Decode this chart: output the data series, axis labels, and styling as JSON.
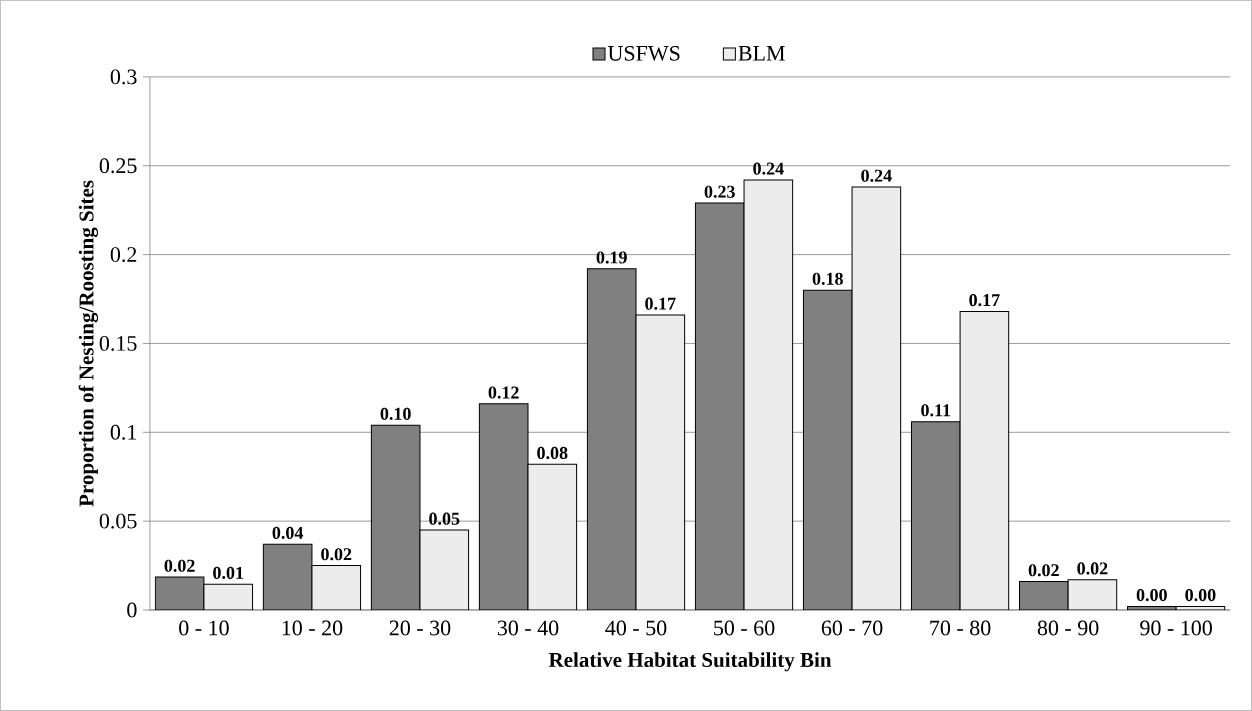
{
  "chart_data": {
    "type": "bar",
    "xlabel": "Relative Habitat Suitability Bin",
    "ylabel": "Proportion of Nesting/Roosting Sites",
    "categories": [
      "0 - 10",
      "10 - 20",
      "20 - 30",
      "30 - 40",
      "40 - 50",
      "50 - 60",
      "60 - 70",
      "70 - 80",
      "80 - 90",
      "90 - 100"
    ],
    "series": [
      {
        "name": "USFWS",
        "color": "#808080",
        "values": [
          0.0185,
          0.037,
          0.104,
          0.116,
          0.192,
          0.229,
          0.18,
          0.106,
          0.016,
          0.002
        ],
        "value_labels": [
          "0.02",
          "0.04",
          "0.10",
          "0.12",
          "0.19",
          "0.23",
          "0.18",
          "0.11",
          "0.02",
          "0.00"
        ]
      },
      {
        "name": "BLM",
        "color": "#ececec",
        "values": [
          0.0145,
          0.025,
          0.045,
          0.082,
          0.166,
          0.242,
          0.238,
          0.168,
          0.017,
          0.002
        ],
        "value_labels": [
          "0.01",
          "0.02",
          "0.05",
          "0.08",
          "0.17",
          "0.24",
          "0.24",
          "0.17",
          "0.02",
          "0.00"
        ]
      }
    ],
    "ylim": [
      0,
      0.3
    ],
    "yticks": [
      0,
      0.05,
      0.1,
      0.15,
      0.2,
      0.25,
      0.3
    ],
    "grid": "y",
    "legend": "top"
  }
}
